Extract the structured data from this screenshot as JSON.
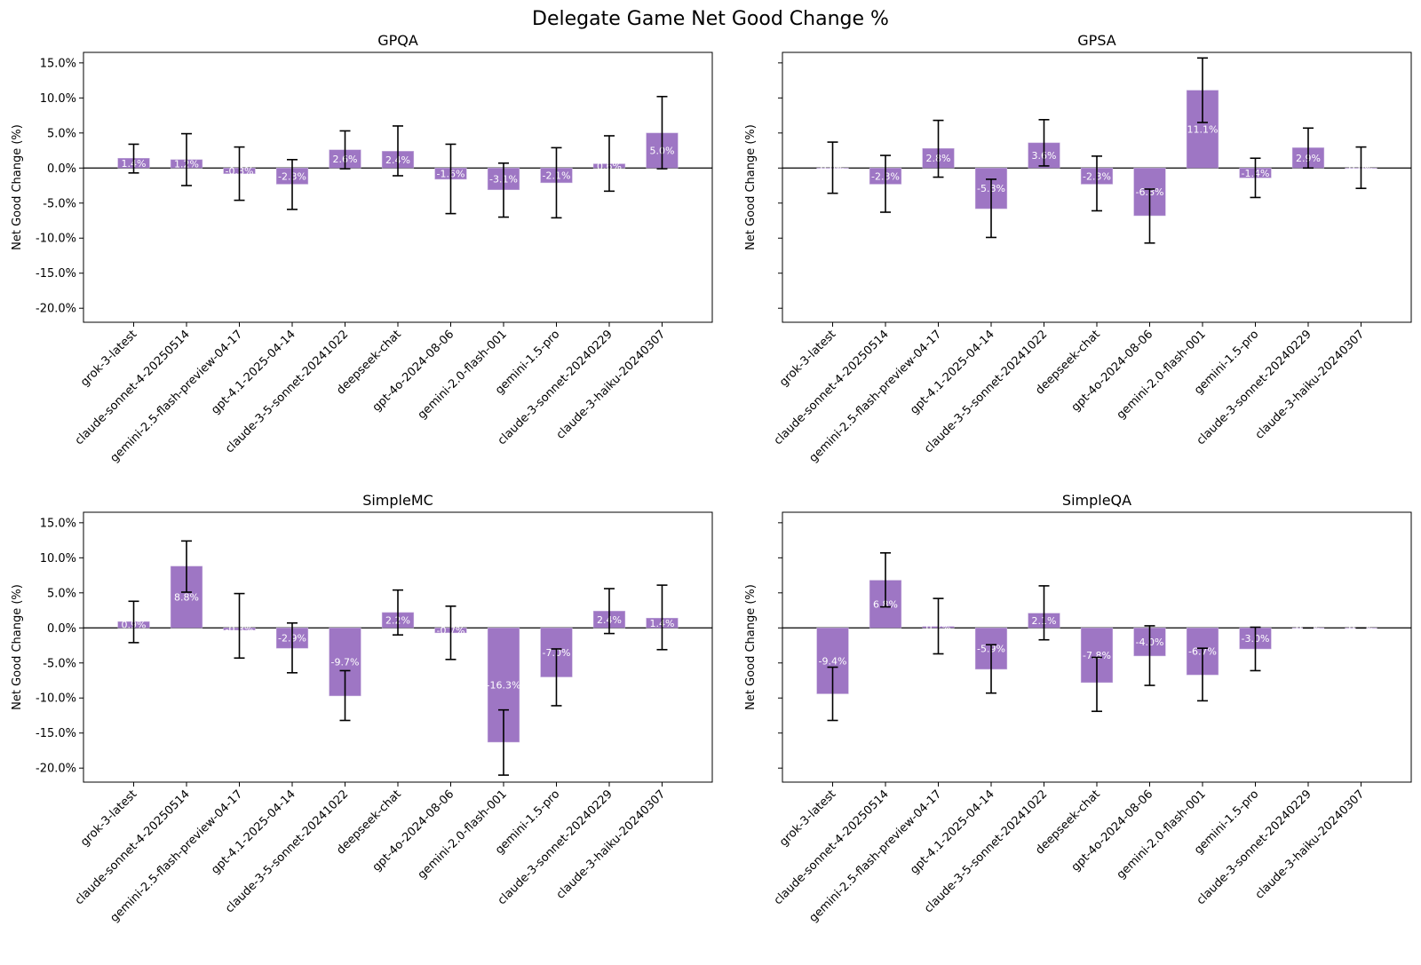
{
  "chart_data": {
    "type": "bar",
    "title": "Delegate Game Net Good Change %",
    "bar_color": "#9e76c4",
    "errorbar_color": "#000000",
    "ylabel": "Net Good Change (%)",
    "ylim": [
      -22,
      16.5
    ],
    "yticks": [
      15,
      10,
      5,
      0,
      -5,
      -10,
      -15,
      -20
    ],
    "ytick_labels": [
      "15.0%",
      "10.0%",
      "5.0%",
      "0.0%",
      "-5.0%",
      "-10.0%",
      "-15.0%",
      "-20.0%"
    ],
    "categories": [
      "grok-3-latest",
      "claude-sonnet-4-20250514",
      "gemini-2.5-flash-preview-04-17",
      "gpt-4.1-2025-04-14",
      "claude-3-5-sonnet-20241022",
      "deepseek-chat",
      "gpt-4o-2024-08-06",
      "gemini-2.0-flash-001",
      "gemini-1.5-pro",
      "claude-3-sonnet-20240229",
      "claude-3-haiku-20240307"
    ],
    "panels": [
      {
        "title": "GPQA",
        "values": [
          1.4,
          1.2,
          -0.8,
          -2.3,
          2.6,
          2.4,
          -1.6,
          -3.1,
          -2.1,
          0.6,
          5.0
        ],
        "labels": [
          "1.4%",
          "1.2%",
          "-0.8%",
          "-2.3%",
          "2.6%",
          "2.4%",
          "-1.6%",
          "-3.1%",
          "-2.1%",
          "0.6%",
          "5.0%"
        ],
        "err_low": [
          -0.7,
          -2.5,
          -4.6,
          -5.9,
          -0.1,
          -1.1,
          -6.5,
          -7.0,
          -7.1,
          -3.3,
          -0.1
        ],
        "err_high": [
          3.4,
          4.9,
          3.0,
          1.2,
          5.3,
          6.0,
          3.4,
          0.7,
          2.9,
          4.6,
          10.2
        ]
      },
      {
        "title": "GPSA",
        "values": [
          0.0,
          -2.3,
          2.8,
          -5.8,
          3.6,
          -2.3,
          -6.8,
          11.1,
          -1.4,
          2.9,
          0.0
        ],
        "labels": [
          "0.0%",
          "-2.3%",
          "2.8%",
          "-5.8%",
          "3.6%",
          "-2.3%",
          "-6.8%",
          "11.1%",
          "-1.4%",
          "2.9%",
          "0.0%"
        ],
        "err_low": [
          -3.6,
          -6.3,
          -1.3,
          -9.9,
          0.3,
          -6.1,
          -10.7,
          6.5,
          -4.2,
          0.0,
          -2.9
        ],
        "err_high": [
          3.7,
          1.8,
          6.8,
          -1.6,
          6.9,
          1.7,
          -3.0,
          15.7,
          1.4,
          5.7,
          3.0
        ]
      },
      {
        "title": "SimpleMC",
        "values": [
          0.9,
          8.8,
          -0.3,
          -2.9,
          -9.7,
          2.2,
          -0.7,
          -16.3,
          -7.0,
          2.4,
          1.4
        ],
        "labels": [
          "0.9%",
          "8.8%",
          "-0.3%",
          "-2.9%",
          "-9.7%",
          "2.2%",
          "-0.7%",
          "-16.3%",
          "-7.0%",
          "2.4%",
          "1.4%"
        ],
        "err_low": [
          -2.1,
          5.1,
          -4.3,
          -6.4,
          -13.2,
          -1.0,
          -4.5,
          -21.0,
          -11.1,
          -0.8,
          -3.1
        ],
        "err_high": [
          3.8,
          12.4,
          4.9,
          0.7,
          -6.1,
          5.4,
          3.1,
          -11.7,
          -3.0,
          5.6,
          6.1
        ]
      },
      {
        "title": "SimpleQA",
        "values": [
          -9.4,
          6.8,
          0.2,
          -5.9,
          2.1,
          -7.8,
          -4.0,
          -6.7,
          -3.0,
          0.0,
          0.0
        ],
        "labels": [
          "-9.4%",
          "6.8%",
          "0.2%",
          "-5.9%",
          "2.1%",
          "-7.8%",
          "-4.0%",
          "-6.7%",
          "-3.0%",
          "0.0%",
          "0.0%"
        ],
        "err_low": [
          -13.2,
          3.0,
          -3.7,
          -9.3,
          -1.7,
          -11.9,
          -8.2,
          -10.4,
          -6.1,
          0.0,
          0.0
        ],
        "err_high": [
          -5.6,
          10.7,
          4.2,
          -2.4,
          6.0,
          -4.2,
          0.3,
          -2.9,
          0.1,
          0.0,
          0.0
        ]
      }
    ]
  }
}
